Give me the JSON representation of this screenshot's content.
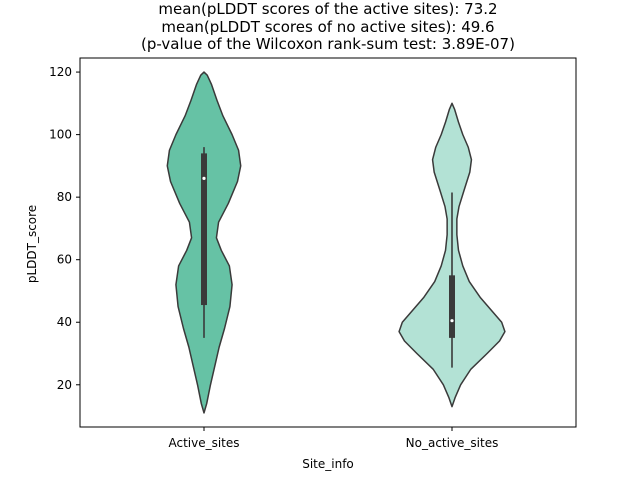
{
  "chart_data": {
    "type": "violin",
    "title": [
      "mean(pLDDT scores of the active sites): 73.2",
      "mean(pLDDT scores of no active sites): 49.6",
      "(p-value of the Wilcoxon rank-sum test: 3.89E-07)"
    ],
    "xlabel": "Site_info",
    "ylabel": "pLDDT_score",
    "ylim": [
      6.5,
      124.5
    ],
    "yticks": [
      20,
      40,
      60,
      80,
      100,
      120
    ],
    "categories": [
      "Active_sites",
      "No_active_sites"
    ],
    "grid": false,
    "legend": "none",
    "series": [
      {
        "category": "Active_sites",
        "color": "#66c2a5",
        "outline": "#3a3a3a",
        "range": [
          11,
          120
        ],
        "quartiles": [
          45.5,
          86,
          94
        ],
        "whiskers": [
          35,
          96
        ],
        "median": 86,
        "density": [
          [
            11,
            0.0
          ],
          [
            14,
            0.05
          ],
          [
            20,
            0.12
          ],
          [
            26,
            0.2
          ],
          [
            32,
            0.28
          ],
          [
            38,
            0.38
          ],
          [
            45,
            0.48
          ],
          [
            52,
            0.52
          ],
          [
            58,
            0.47
          ],
          [
            63,
            0.32
          ],
          [
            67,
            0.23
          ],
          [
            72,
            0.27
          ],
          [
            78,
            0.45
          ],
          [
            85,
            0.62
          ],
          [
            90,
            0.68
          ],
          [
            95,
            0.64
          ],
          [
            100,
            0.52
          ],
          [
            106,
            0.35
          ],
          [
            111,
            0.24
          ],
          [
            116,
            0.14
          ],
          [
            119,
            0.06
          ],
          [
            120,
            0.0
          ]
        ]
      },
      {
        "category": "No_active_sites",
        "color": "#b3e2d5",
        "outline": "#3a3a3a",
        "range": [
          13,
          110
        ],
        "quartiles": [
          35,
          40.5,
          55
        ],
        "whiskers": [
          25.5,
          81.5
        ],
        "median": 40.5,
        "density": [
          [
            13,
            0.0
          ],
          [
            16,
            0.06
          ],
          [
            20,
            0.16
          ],
          [
            25,
            0.35
          ],
          [
            30,
            0.65
          ],
          [
            34,
            0.88
          ],
          [
            37,
            0.98
          ],
          [
            40,
            0.92
          ],
          [
            44,
            0.72
          ],
          [
            48,
            0.52
          ],
          [
            53,
            0.32
          ],
          [
            58,
            0.2
          ],
          [
            63,
            0.12
          ],
          [
            68,
            0.09
          ],
          [
            73,
            0.09
          ],
          [
            77,
            0.13
          ],
          [
            82,
            0.22
          ],
          [
            88,
            0.33
          ],
          [
            92,
            0.36
          ],
          [
            96,
            0.3
          ],
          [
            100,
            0.2
          ],
          [
            104,
            0.12
          ],
          [
            108,
            0.05
          ],
          [
            110,
            0.0
          ]
        ]
      }
    ]
  }
}
